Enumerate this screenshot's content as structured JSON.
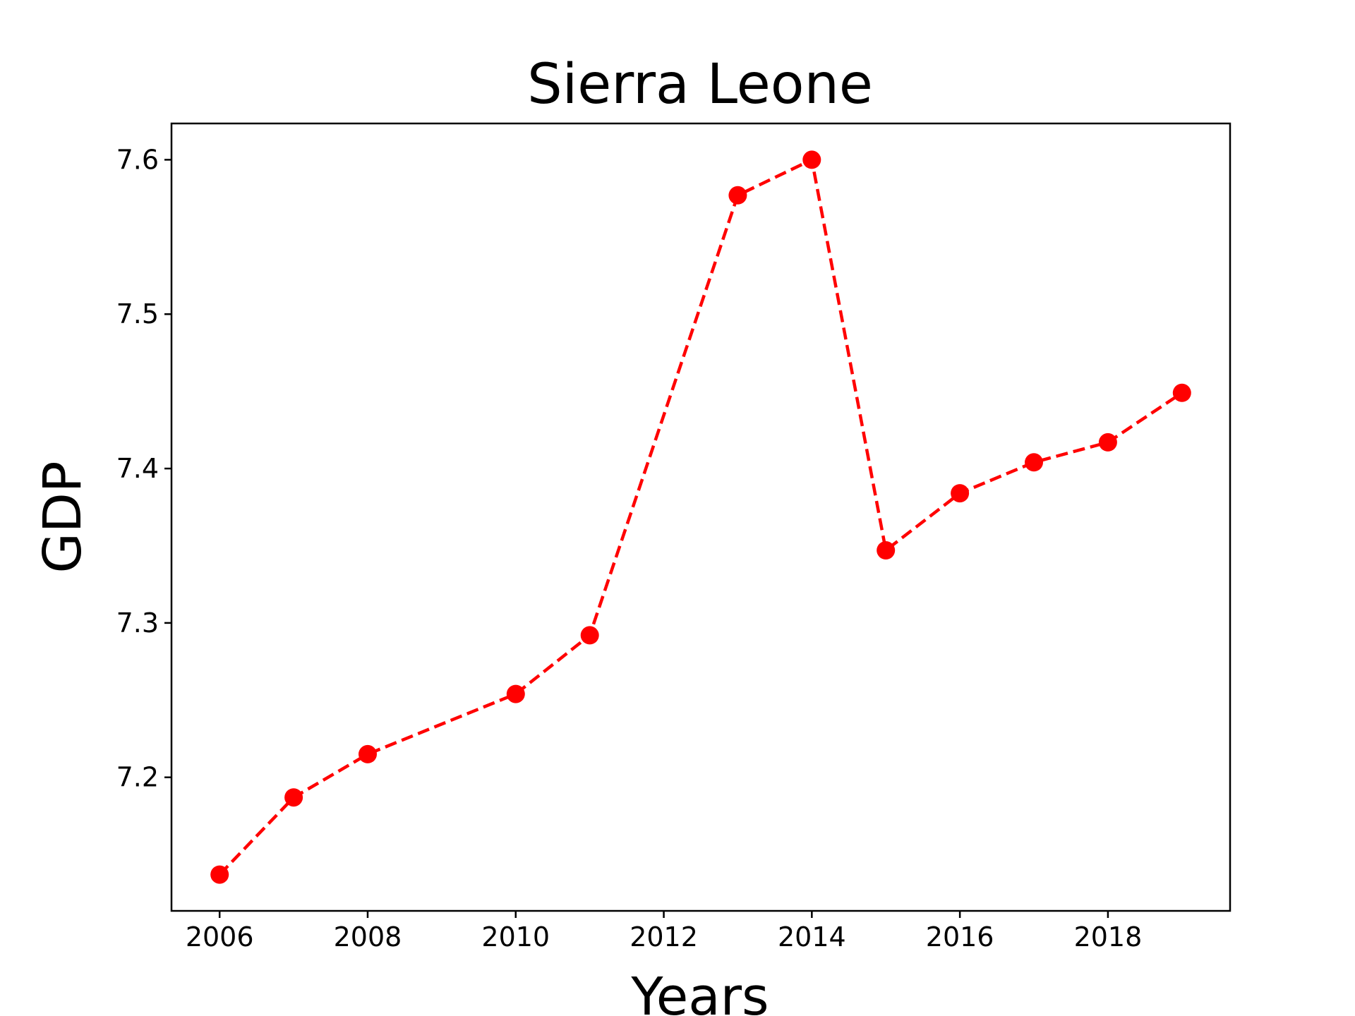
{
  "chart_data": {
    "type": "line",
    "title": "Sierra Leone",
    "xlabel": "Years",
    "ylabel": "GDP",
    "x": [
      2006,
      2007,
      2008,
      2010,
      2011,
      2013,
      2014,
      2015,
      2016,
      2017,
      2018,
      2019
    ],
    "series": [
      {
        "values": [
          7.137,
          7.187,
          7.215,
          7.254,
          7.292,
          7.577,
          7.6,
          7.347,
          7.384,
          7.404,
          7.417,
          7.449
        ],
        "color": "#ff0000",
        "line_style": "dashed",
        "marker": "circle"
      }
    ],
    "xlim": [
      2005.35,
      2019.65
    ],
    "ylim": [
      7.1135,
      7.6235
    ],
    "xticks": [
      2006,
      2008,
      2010,
      2012,
      2014,
      2016,
      2018
    ],
    "yticks": [
      7.2,
      7.3,
      7.4,
      7.5,
      7.6
    ],
    "xtick_labels": [
      "2006",
      "2008",
      "2010",
      "2012",
      "2014",
      "2016",
      "2018"
    ],
    "ytick_labels": [
      "7.2",
      "7.3",
      "7.4",
      "7.5",
      "7.6"
    ],
    "grid": false,
    "legend": "none"
  }
}
